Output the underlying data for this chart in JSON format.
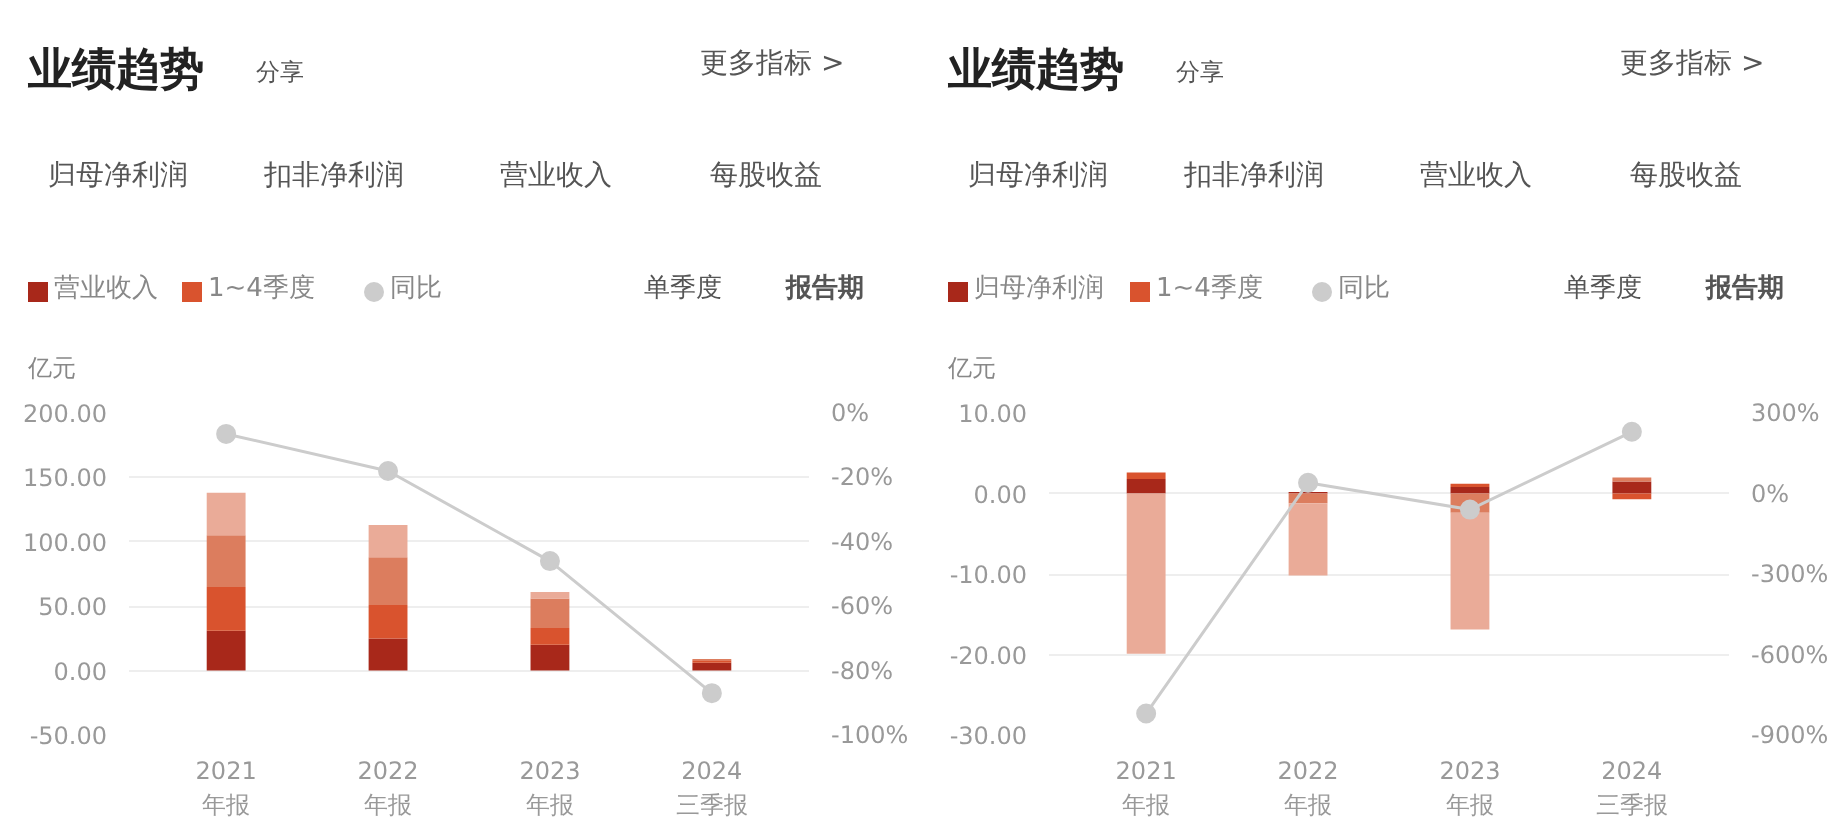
{
  "chart_data": [
    {
      "type": "bar",
      "stacked": true,
      "title": "业绩趋势",
      "ylabel": "亿元",
      "annotations": [
        "分享",
        "更多指标 >",
        "归母净利润",
        "扣非净利润",
        "营业收入",
        "每股收益",
        "单季度",
        "报告期"
      ],
      "categories": [
        "2021\n年报",
        "2022\n年报",
        "2023\n年报",
        "2024\n三季报"
      ],
      "series": [
        {
          "name": "营业收入",
          "color": "#a8281a",
          "values": [
            31,
            25,
            20,
            6
          ]
        },
        {
          "name": "1~4季度",
          "color": "#d9532e",
          "values": [
            34,
            26,
            13,
            2
          ]
        },
        {
          "color": "#dc7d5e",
          "values": [
            40,
            37,
            23,
            1
          ]
        },
        {
          "color": "#eaab98",
          "values": [
            33,
            25,
            5,
            null
          ]
        },
        {
          "name": "同比",
          "type": "line",
          "axis": "y2",
          "color": "#cccccc",
          "values": [
            -6.5,
            -18,
            -46,
            -87
          ]
        }
      ],
      "ylim": [
        -50,
        200
      ],
      "yticks": [
        {
          "value": -50,
          "label": "-50.00"
        },
        {
          "value": 0,
          "label": "0.00"
        },
        {
          "value": 50,
          "label": "50.00"
        },
        {
          "value": 100,
          "label": "100.00"
        },
        {
          "value": 150,
          "label": "150.00"
        },
        {
          "value": 200,
          "label": "200.00"
        }
      ],
      "y2lim": [
        -100,
        0
      ],
      "y2ticks": [
        {
          "value": -100,
          "label": "-100%"
        },
        {
          "value": -80,
          "label": "-80%"
        },
        {
          "value": -60,
          "label": "-60%"
        },
        {
          "value": -40,
          "label": "-40%"
        },
        {
          "value": -20,
          "label": "-20%"
        },
        {
          "value": 0,
          "label": "0%"
        }
      ],
      "grid": "y",
      "legend": "top left",
      "marker": "circle"
    },
    {
      "type": "bar",
      "stacked": true,
      "title": "业绩趋势",
      "ylabel": "亿元",
      "annotations": [
        "分享",
        "更多指标 >",
        "归母净利润",
        "扣非净利润",
        "营业收入",
        "每股收益",
        "单季度",
        "报告期"
      ],
      "categories": [
        "2021\n年报",
        "2022\n年报",
        "2023\n年报",
        "2024\n三季报"
      ],
      "series": [
        {
          "name": "归母净利润",
          "color": "#a8281a",
          "values": [
            1.8,
            0.2,
            0.8,
            1.5
          ]
        },
        {
          "name": "1~4季度",
          "color": "#d9532e",
          "values": [
            0.8,
            null,
            0.4,
            -0.7
          ]
        },
        {
          "color": "#dc7d5e",
          "values": [
            null,
            -1.2,
            -2.4,
            0.5
          ]
        },
        {
          "color": "#eaab98",
          "values": [
            -19.9,
            -9,
            -14.5,
            null
          ]
        },
        {
          "name": "同比",
          "type": "line",
          "axis": "y2",
          "color": "#cccccc",
          "values": [
            -820,
            40,
            -60,
            230
          ]
        }
      ],
      "ylim": [
        -30,
        10
      ],
      "yticks": [
        {
          "value": -30,
          "label": "-30.00"
        },
        {
          "value": -20,
          "label": "-20.00"
        },
        {
          "value": -10,
          "label": "-10.00"
        },
        {
          "value": 0,
          "label": "0.00"
        },
        {
          "value": 10,
          "label": "10.00"
        }
      ],
      "y2lim": [
        -900,
        300
      ],
      "y2ticks": [
        {
          "value": -900,
          "label": "-900%"
        },
        {
          "value": -600,
          "label": "-600%"
        },
        {
          "value": -300,
          "label": "-300%"
        },
        {
          "value": 0,
          "label": "0%"
        },
        {
          "value": 300,
          "label": "300%"
        }
      ],
      "grid": "y",
      "legend": "top left",
      "marker": "circle"
    }
  ]
}
